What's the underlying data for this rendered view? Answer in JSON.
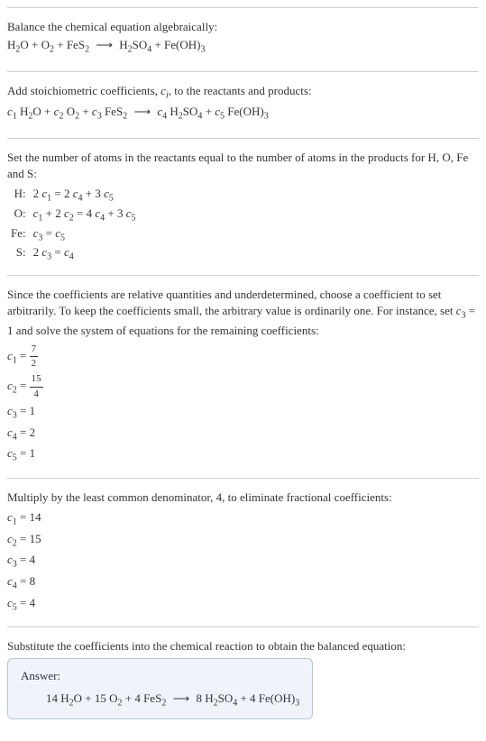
{
  "colors": {
    "text": "#333333",
    "border": "#cccccc",
    "answer_bg": "#f0f4fa",
    "answer_border": "#b8c5d9"
  },
  "typography": {
    "base_fontsize": 13,
    "sub_fontsize": 10,
    "frac_fontsize": 11
  },
  "section1": {
    "intro": "Balance the chemical equation algebraically:",
    "eq_html": "H<span class=\"sub\">2</span>O + O<span class=\"sub\">2</span> + FeS<span class=\"sub\">2</span>  <span class=\"arrow\">⟶</span>  H<span class=\"sub\">2</span>SO<span class=\"sub\">4</span> + Fe(OH)<span class=\"sub\">3</span>"
  },
  "section2": {
    "intro_html": "Add stoichiometric coefficients, <span class=\"italic\">c<span class=\"subscript-i\">i</span></span>, to the reactants and products:",
    "eq_html": "<span class=\"italic\">c</span><span class=\"sub\">1</span> H<span class=\"sub\">2</span>O + <span class=\"italic\">c</span><span class=\"sub\">2</span> O<span class=\"sub\">2</span> + <span class=\"italic\">c</span><span class=\"sub\">3</span> FeS<span class=\"sub\">2</span>  <span class=\"arrow\">⟶</span>  <span class=\"italic\">c</span><span class=\"sub\">4</span> H<span class=\"sub\">2</span>SO<span class=\"sub\">4</span> + <span class=\"italic\">c</span><span class=\"sub\">5</span> Fe(OH)<span class=\"sub\">3</span>"
  },
  "section3": {
    "intro": "Set the number of atoms in the reactants equal to the number of atoms in the products for H, O, Fe and S:",
    "rows": [
      {
        "element": "H:",
        "eq_html": "2 <span class=\"italic\">c</span><span class=\"sub\">1</span> = 2 <span class=\"italic\">c</span><span class=\"sub\">4</span> + 3 <span class=\"italic\">c</span><span class=\"sub\">5</span>"
      },
      {
        "element": "O:",
        "eq_html": "<span class=\"italic\">c</span><span class=\"sub\">1</span> + 2 <span class=\"italic\">c</span><span class=\"sub\">2</span> = 4 <span class=\"italic\">c</span><span class=\"sub\">4</span> + 3 <span class=\"italic\">c</span><span class=\"sub\">5</span>"
      },
      {
        "element": "Fe:",
        "eq_html": "<span class=\"italic\">c</span><span class=\"sub\">3</span> = <span class=\"italic\">c</span><span class=\"sub\">5</span>"
      },
      {
        "element": "S:",
        "eq_html": "2 <span class=\"italic\">c</span><span class=\"sub\">3</span> = <span class=\"italic\">c</span><span class=\"sub\">4</span>"
      }
    ]
  },
  "section4": {
    "intro_html": "Since the coefficients are relative quantities and underdetermined, choose a coefficient to set arbitrarily. To keep the coefficients small, the arbitrary value is ordinarily one. For instance, set <span class=\"italic\">c</span><span class=\"sub\">3</span> = 1 and solve the system of equations for the remaining coefficients:",
    "coefs": [
      {
        "lhs_html": "<span class=\"italic\">c</span><span class=\"sub\">1</span> =",
        "rhs_html": "<span class=\"frac\"><span class=\"num\">7</span><span class=\"den\">2</span></span>"
      },
      {
        "lhs_html": "<span class=\"italic\">c</span><span class=\"sub\">2</span> =",
        "rhs_html": "<span class=\"frac\"><span class=\"num\">15</span><span class=\"den\">4</span></span>"
      },
      {
        "lhs_html": "<span class=\"italic\">c</span><span class=\"sub\">3</span> =",
        "rhs_html": "1"
      },
      {
        "lhs_html": "<span class=\"italic\">c</span><span class=\"sub\">4</span> =",
        "rhs_html": "2"
      },
      {
        "lhs_html": "<span class=\"italic\">c</span><span class=\"sub\">5</span> =",
        "rhs_html": "1"
      }
    ]
  },
  "section5": {
    "intro": "Multiply by the least common denominator, 4, to eliminate fractional coefficients:",
    "coefs": [
      {
        "lhs_html": "<span class=\"italic\">c</span><span class=\"sub\">1</span> =",
        "rhs": "14"
      },
      {
        "lhs_html": "<span class=\"italic\">c</span><span class=\"sub\">2</span> =",
        "rhs": "15"
      },
      {
        "lhs_html": "<span class=\"italic\">c</span><span class=\"sub\">3</span> =",
        "rhs": "4"
      },
      {
        "lhs_html": "<span class=\"italic\">c</span><span class=\"sub\">4</span> =",
        "rhs": "8"
      },
      {
        "lhs_html": "<span class=\"italic\">c</span><span class=\"sub\">5</span> =",
        "rhs": "4"
      }
    ]
  },
  "section6": {
    "intro": "Substitute the coefficients into the chemical reaction to obtain the balanced equation:",
    "answer_label": "Answer:",
    "answer_eq_html": "14 H<span class=\"sub\">2</span>O + 15 O<span class=\"sub\">2</span> + 4 FeS<span class=\"sub\">2</span>  <span class=\"arrow\">⟶</span>  8 H<span class=\"sub\">2</span>SO<span class=\"sub\">4</span> + 4 Fe(OH)<span class=\"sub\">3</span>"
  }
}
